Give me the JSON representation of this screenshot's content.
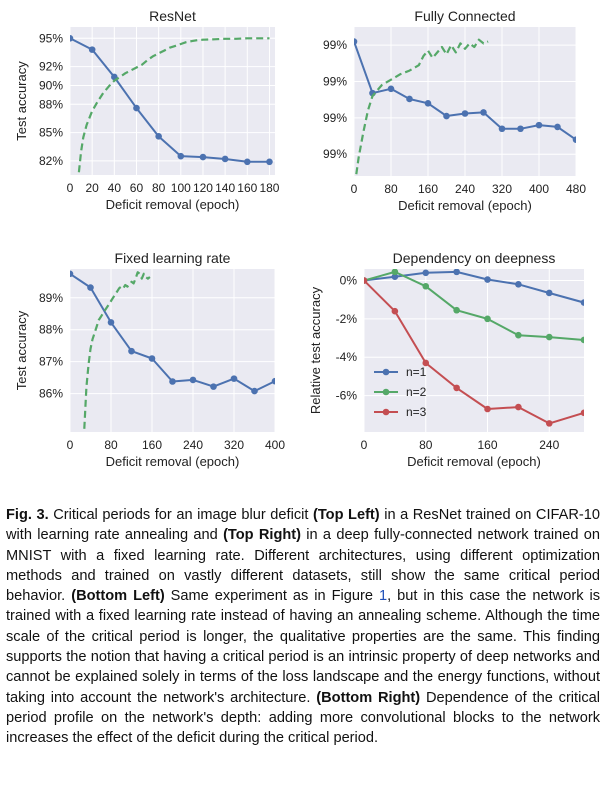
{
  "colors": {
    "plot_bg": "#eaeaf2",
    "grid": "#ffffff",
    "blue": "#4c72b0",
    "green": "#55a868",
    "red": "#c44e52"
  },
  "chart_data": [
    {
      "id": "resnet",
      "type": "line",
      "title": "ResNet",
      "xlabel": "Deficit removal (epoch)",
      "ylabel": "Test accuracy",
      "xticks": [
        0,
        20,
        40,
        60,
        80,
        100,
        120,
        140,
        160,
        180
      ],
      "xtick_labels": [
        "0",
        "20",
        "40",
        "60",
        "80",
        "100",
        "120",
        "140",
        "160",
        "180"
      ],
      "yticks": [
        82,
        85,
        88,
        90,
        92,
        95
      ],
      "ytick_labels": [
        "82%",
        "85%",
        "88%",
        "90%",
        "92%",
        "95%"
      ],
      "xlim": [
        0,
        185
      ],
      "ylim": [
        80.5,
        96.2
      ],
      "grid": true,
      "series": [
        {
          "style": "solid-markers",
          "color": "blue",
          "x": [
            0,
            20,
            40,
            60,
            80,
            100,
            120,
            140,
            160,
            180
          ],
          "y": [
            95.0,
            93.8,
            90.9,
            87.6,
            84.6,
            82.5,
            82.4,
            82.2,
            81.9,
            81.9
          ]
        },
        {
          "style": "dashed",
          "color": "green",
          "x": [
            8,
            10,
            12,
            15,
            20,
            25,
            30,
            35,
            40,
            45,
            50,
            55,
            60,
            65,
            70,
            75,
            80,
            85,
            90,
            95,
            100,
            105,
            110,
            115,
            120,
            130,
            140,
            150,
            160,
            170,
            180
          ],
          "y": [
            80.8,
            83.0,
            84.5,
            85.8,
            87.3,
            88.3,
            89.2,
            89.9,
            90.5,
            90.9,
            91.3,
            91.6,
            91.9,
            92.2,
            92.7,
            93.1,
            93.4,
            93.7,
            94.0,
            94.2,
            94.4,
            94.6,
            94.7,
            94.8,
            94.85,
            94.9,
            94.95,
            94.95,
            95.0,
            95.0,
            95.0
          ]
        }
      ]
    },
    {
      "id": "fc",
      "type": "line",
      "title": "Fully Connected",
      "xlabel": "Deficit removal (epoch)",
      "ylabel": "",
      "xticks": [
        0,
        80,
        160,
        240,
        320,
        400,
        480
      ],
      "xtick_labels": [
        "0",
        "80",
        "160",
        "240",
        "320",
        "400",
        "480"
      ],
      "yticks": [
        0,
        1,
        2,
        3
      ],
      "ytick_labels": [
        "99%",
        "99%",
        "99%",
        "99%"
      ],
      "xlim": [
        0,
        480
      ],
      "ylim": [
        3.6,
        -0.5
      ],
      "grid": true,
      "series": [
        {
          "style": "solid-markers",
          "color": "blue",
          "x": [
            0,
            40,
            80,
            120,
            160,
            200,
            240,
            280,
            320,
            360,
            400,
            440,
            480
          ],
          "y": [
            -0.1,
            1.32,
            1.2,
            1.48,
            1.6,
            1.95,
            1.88,
            1.85,
            2.3,
            2.3,
            2.2,
            2.25,
            2.6
          ]
        },
        {
          "style": "dashed",
          "color": "green",
          "x": [
            5,
            10,
            20,
            30,
            40,
            60,
            80,
            100,
            120,
            140,
            150,
            160,
            170,
            180,
            190,
            200,
            210,
            220,
            230,
            240,
            250,
            260,
            270,
            280,
            290
          ],
          "y": [
            3.55,
            3.1,
            2.4,
            1.8,
            1.4,
            1.1,
            0.95,
            0.8,
            0.7,
            0.55,
            0.3,
            0.15,
            0.35,
            0.2,
            0.05,
            0.25,
            0.0,
            0.2,
            -0.05,
            0.1,
            -0.05,
            0.05,
            -0.15,
            -0.05,
            -0.1
          ]
        }
      ]
    },
    {
      "id": "fixed",
      "type": "line",
      "title": "Fixed learning rate",
      "xlabel": "Deficit removal (epoch)",
      "ylabel": "Test accuracy",
      "xticks": [
        0,
        80,
        160,
        240,
        320,
        400
      ],
      "xtick_labels": [
        "0",
        "80",
        "160",
        "240",
        "320",
        "400"
      ],
      "yticks": [
        86,
        87,
        88,
        89
      ],
      "ytick_labels": [
        "86%",
        "87%",
        "88%",
        "89%"
      ],
      "xlim": [
        0,
        400
      ],
      "ylim": [
        84.8,
        89.9
      ],
      "grid": true,
      "series": [
        {
          "style": "solid-markers",
          "color": "blue",
          "x": [
            0,
            40,
            80,
            120,
            160,
            200,
            240,
            280,
            320,
            360,
            400
          ],
          "y": [
            89.75,
            89.32,
            88.23,
            87.33,
            87.1,
            86.38,
            86.43,
            86.22,
            86.47,
            86.08,
            86.39
          ]
        },
        {
          "style": "dashed",
          "color": "green",
          "x": [
            28,
            32,
            36,
            40,
            44,
            48,
            52,
            56,
            60,
            64,
            68,
            72,
            76,
            80,
            84,
            88,
            92,
            96,
            100,
            104,
            108,
            112,
            116,
            120,
            124,
            128,
            132,
            136,
            140,
            144,
            148,
            152,
            156
          ],
          "y": [
            84.9,
            86.2,
            86.9,
            87.4,
            87.7,
            87.9,
            88.1,
            88.3,
            88.4,
            88.5,
            88.6,
            88.7,
            88.8,
            88.9,
            89.0,
            89.1,
            89.2,
            89.3,
            89.35,
            89.3,
            89.4,
            89.35,
            89.4,
            89.5,
            89.45,
            89.6,
            89.8,
            89.75,
            89.6,
            89.75,
            89.65,
            89.6,
            89.65
          ]
        }
      ]
    },
    {
      "id": "depth",
      "type": "line",
      "title": "Dependency on deepness",
      "xlabel": "Deficit removal (epoch)",
      "ylabel": "Relative test accuracy",
      "xticks": [
        0,
        80,
        160,
        240
      ],
      "xtick_labels": [
        "0",
        "80",
        "160",
        "240"
      ],
      "yticks": [
        0,
        -2,
        -4,
        -6
      ],
      "ytick_labels": [
        "0%",
        "-2%",
        "-4%",
        "-6%"
      ],
      "xlim": [
        0,
        285
      ],
      "ylim": [
        -7.9,
        0.6
      ],
      "grid": true,
      "legend": "lower-left",
      "series": [
        {
          "name": "n=1",
          "style": "solid-markers",
          "color": "blue",
          "x": [
            0,
            40,
            80,
            120,
            160,
            200,
            240,
            285
          ],
          "y": [
            0.0,
            0.2,
            0.4,
            0.45,
            0.05,
            -0.2,
            -0.65,
            -1.15
          ]
        },
        {
          "name": "n=2",
          "style": "solid-markers",
          "color": "green",
          "x": [
            0,
            40,
            80,
            120,
            160,
            200,
            240,
            285
          ],
          "y": [
            0.0,
            0.45,
            -0.3,
            -1.55,
            -2.0,
            -2.85,
            -2.95,
            -3.1
          ]
        },
        {
          "name": "n=3",
          "style": "solid-markers",
          "color": "red",
          "x": [
            0,
            40,
            80,
            120,
            160,
            200,
            240,
            285
          ],
          "y": [
            0.0,
            -1.6,
            -4.3,
            -5.6,
            -6.7,
            -6.6,
            -7.45,
            -6.9
          ]
        }
      ]
    }
  ],
  "caption": {
    "label": "Fig. 3.",
    "p1": " Critical periods for an image blur deficit ",
    "b1": "(Top Left)",
    "p2": " in a ResNet trained on CIFAR-10 with learning rate annealing and ",
    "b2": "(Top Right)",
    "p3": " in a deep fully-connected network trained on MNIST with a fixed learning rate. Different architectures, using different optimization methods and trained on vastly different datasets, still show the same critical period behavior. ",
    "b3": "(Bottom Left)",
    "p4": " Same experiment as in Figure ",
    "ref": "1",
    "p5": ", but in this case the network is trained with a fixed learning rate instead of having an annealing scheme. Although the time scale of the critical period is longer, the qualitative properties are the same. This finding supports the notion that having a critical period is an intrinsic property of deep networks and cannot be explained solely in terms of the loss landscape and the energy functions, without taking into account the network's architecture. ",
    "b4": "(Bottom Right)",
    "p6": " Dependence of the critical period profile on the network's depth: adding more convolutional blocks to the network increases the effect of the deficit during the critical period."
  }
}
